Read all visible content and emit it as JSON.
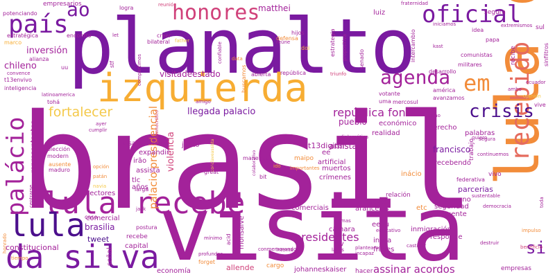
{
  "palette": {
    "background": "#ffffff",
    "purple_dark": "#4b0f8c",
    "purple": "#7a1aa0",
    "magenta": "#a3229a",
    "pink": "#d0417a",
    "coral": "#e56b5e",
    "orange": "#f28c3a",
    "amber": "#f7ad33",
    "yellow": "#f4c94a"
  },
  "words": {
    "brasil": "brasil",
    "visita": "visita",
    "planalto": "planalto",
    "lula_da": "lula da",
    "izquierda": "izquierda",
    "lula_recebe": "lula recebe",
    "da_silva": "da silva",
    "pais": "país",
    "palacio": "palácio",
    "lula": "lula",
    "recebido": "recebido",
    "oficial": "oficial",
    "honores": "honores",
    "ao": "ao",
    "em": "em",
    "agenda": "agenda",
    "crisis": "crisis",
    "fortalecer": "fortalecer",
    "llegada_palacio": "llegada palacio",
    "republica_font": "república font",
    "si": "si",
    "inversion": "inversión",
    "chileno": "chileno",
    "presidentes": "presidentes",
    "palacio_presidencial": "palacio presidencial",
    "violencia": "violencia",
    "visitadeestado": "visitadeestado",
    "brasilia": "brasilia",
    "assinar_acordos": "assinar acordos",
    "matthei": "matthei",
    "luiz": "luiz",
    "segura": "segura",
    "recibe": "recibe",
    "sul": "sul",
    "empresarios": "empresarios",
    "potenciando": "potenciando",
    "logra": "logra",
    "reunio": "reunió",
    "fraternidad": "fraternidad",
    "estrategica": "estratégica",
    "encontro": "encontro",
    "creer": "creer",
    "let": "let",
    "defensa": "defensa",
    "estrategia": "estrategia",
    "intercambio": "intercambio",
    "iniciamos": "iniciamos",
    "extremismos": "extremismos",
    "sinfiltros": "sinfiltros",
    "marco": "marco",
    "bilateral": "bilateral",
    "father": "father",
    "hijos": "hijos",
    "idea": "idea",
    "kast": "kast",
    "papa": "papa",
    "alianza": "alianza",
    "uu": "uu",
    "stf": "stf",
    "confiable": "confiable",
    "reune": "reúne",
    "doi": "doi",
    "propositiva": "propositiva",
    "comunistas": "comunistas",
    "data": "data",
    "senado": "senado",
    "militares": "militares",
    "t13envivo": "t13envivo",
    "convence": "convence",
    "compartimos": "compartimos",
    "buscamos": "buscamos",
    "abierta": "abierta",
    "republica_small": "república",
    "triunfo": "triunfo",
    "desarrollo": "desarrollo",
    "inteligencia": "inteligencia",
    "latinoamerica": "latinoamerica",
    "amigo": "amigo",
    "america": "américa",
    "avanzamos": "avanzamos",
    "opinion": "opinión",
    "ecuador": "ecuador",
    "ambo": "ambo",
    "toha": "tohá",
    "votante": "votante",
    "mercosul": "mercosul",
    "uma": "uma",
    "vive": "vive",
    "ayer": "ayer",
    "cumplir": "cumplir",
    "antidemocratico": "antidemocrático",
    "qliao": "qliao",
    "economico": "económico",
    "derecho": "derecho",
    "realidad": "realidad",
    "palabras": "palabras",
    "pueblo": "pueblo",
    "diplomatica": "diplomática",
    "gana": "gana",
    "deber": "deber",
    "t13digital": "t13digital",
    "tradition": "tradition",
    "quiero": "quiero",
    "segura_small": "segura",
    "trabajo": "trabajo",
    "continuemos": "continuemos",
    "representantes": "representantes",
    "eleccion": "elección",
    "modern": "modern",
    "ausente": "ausente",
    "maduro": "maduro",
    "opcion": "opción",
    "patan": "patán",
    "navia": "navia",
    "centrarse": "centrarse",
    "visa": "visa",
    "irao": "irão",
    "expandir": "expandir",
    "junto": "junto",
    "assista": "assista",
    "conclaveassista": "conclaveassista",
    "colaborativo": "colaborativo",
    "amistad": "amistad",
    "ee": "ee",
    "artificial": "artificial",
    "francisco": "francisco",
    "maipo": "maipo",
    "maneiras": "maneiras",
    "ido": "ido",
    "importantes": "importantes",
    "tlc": "tlc",
    "anos": "años",
    "larga": "larga",
    "debe": "debe",
    "great": "great",
    "bit": "bit",
    "muertos": "muertos",
    "crimenes": "crímenes",
    "inacio": "inácio",
    "recebendo": "recebendo",
    "relacion": "relación",
    "parcerias": "parcerias",
    "federativa": "federativa",
    "vivo": "vivo",
    "sectores": "sectores",
    "jack": "jack",
    "comercial": "comercial",
    "caso": "caso",
    "tweet": "tweet",
    "recebe_small": "recebe",
    "capital": "capital",
    "monsalve": "monsalve",
    "etc": "etc",
    "hermano": "hermano",
    "sustentable": "sustentable",
    "seguridad": "seguridad",
    "democracia": "democracia",
    "comerciais": "comerciais",
    "nuevos": "nuevos",
    "aranceles": "aranceles",
    "delincuente": "delincuente",
    "toda": "toda",
    "impulso": "impulso",
    "eeuu": "eeuu",
    "equitativo": "equitativo",
    "temas": "temas",
    "inmigracion": "inmigración",
    "camara": "câmara",
    "postura": "postura",
    "minimo": "mínimo",
    "acid": "acid",
    "honrado": "honrado",
    "constitucional": "constitucional",
    "senal": "señal",
    "tiempo": "tiempo",
    "economia": "economía",
    "forget": "forget",
    "profundos": "profundos",
    "allende": "allende",
    "conmemorando": "conmemorando",
    "cargo": "cargo",
    "lazos": "lazos",
    "intenta": "intenta",
    "planteamos": "planteamos",
    "inicia": "inicia",
    "frases": "frases",
    "tv": "tv",
    "castigar": "castigar",
    "responde": "responde",
    "destruir": "destruir",
    "beneficio": "beneficio",
    "incapaz": "incapaz",
    "johanneskaiser": "johanneskaiser",
    "hacer": "hacer",
    "empresas": "empresas"
  }
}
